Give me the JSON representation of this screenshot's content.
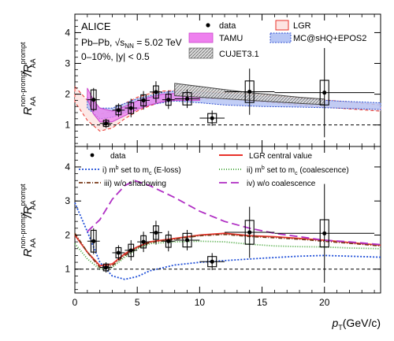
{
  "figure": {
    "experiment": "ALICE",
    "system": "Pb–Pb, √s",
    "system_sub": "NN",
    "energy": " = 5.02 TeV",
    "centrality": "0–10%, |y| < 0.5",
    "ylabel_main": "R",
    "ylabel_sub": "AA",
    "ylabel_sup_num": "non-prompt",
    "ylabel_sup_den": "prompt",
    "xlabel_main": "p",
    "xlabel_sub": "T",
    "xlabel_unit": "(GeV/c)"
  },
  "chart_data": [
    {
      "type": "line",
      "panel": "top",
      "xlim": [
        0,
        24.5
      ],
      "ylim": [
        0.3,
        4.6
      ],
      "yticks": [
        1,
        2,
        3,
        4
      ],
      "xticks": [],
      "reference_line": 1,
      "legend": {
        "data": "data",
        "lgr": "LGR",
        "tamu": "TAMU",
        "mc": "MC@sHQ+EPOS2",
        "cujet": "CUJET3.1"
      },
      "data_points": [
        {
          "x": 1.5,
          "y": 1.82,
          "xerr": 0.5,
          "stat": 0.38,
          "syst": 0.32
        },
        {
          "x": 2.5,
          "y": 1.05,
          "xerr": 0.5,
          "stat": 0.15,
          "syst": 0.1
        },
        {
          "x": 3.5,
          "y": 1.48,
          "xerr": 0.5,
          "stat": 0.22,
          "syst": 0.15
        },
        {
          "x": 4.5,
          "y": 1.55,
          "xerr": 0.5,
          "stat": 0.3,
          "syst": 0.18
        },
        {
          "x": 5.5,
          "y": 1.8,
          "xerr": 0.5,
          "stat": 0.3,
          "syst": 0.18
        },
        {
          "x": 6.5,
          "y": 2.07,
          "xerr": 0.5,
          "stat": 0.35,
          "syst": 0.2
        },
        {
          "x": 7.5,
          "y": 1.82,
          "xerr": 0.5,
          "stat": 0.3,
          "syst": 0.18
        },
        {
          "x": 9.0,
          "y": 1.85,
          "xerr": 1.0,
          "stat": 0.3,
          "syst": 0.2
        },
        {
          "x": 11.0,
          "y": 1.22,
          "xerr": 1.0,
          "stat": 0.25,
          "syst": 0.15
        },
        {
          "x": 14.0,
          "y": 2.08,
          "xerr": 2.0,
          "stat": 0.75,
          "syst": 0.35
        },
        {
          "x": 20.0,
          "y": 2.05,
          "xerr": 4.0,
          "stat": 1.45,
          "syst": 0.4
        }
      ],
      "models": {
        "lgr_band": {
          "x": [
            0.0,
            1.0,
            2.0,
            3.0,
            4.0,
            5.0,
            6.0,
            7.0,
            8.0,
            10.0,
            12.0,
            15.0,
            18.0,
            21.0,
            24.5
          ],
          "lo": [
            1.75,
            1.15,
            0.8,
            0.9,
            1.2,
            1.45,
            1.62,
            1.75,
            1.8,
            1.85,
            1.85,
            1.75,
            1.65,
            1.55,
            1.45
          ],
          "hi": [
            2.25,
            1.8,
            1.35,
            1.45,
            1.7,
            1.9,
            2.02,
            2.1,
            2.12,
            2.1,
            2.05,
            1.98,
            1.88,
            1.78,
            1.65
          ]
        },
        "tamu_band": {
          "x": [
            1.0,
            1.5,
            2.0,
            3.0,
            4.0,
            5.0,
            6.0,
            7.0,
            8.0,
            9.0,
            10.0
          ],
          "lo": [
            1.85,
            1.35,
            1.1,
            1.1,
            1.3,
            1.5,
            1.65,
            1.75,
            1.8,
            1.8,
            1.8
          ],
          "hi": [
            2.2,
            1.8,
            1.55,
            1.45,
            1.6,
            1.78,
            1.9,
            2.0,
            2.02,
            2.02,
            2.02
          ]
        },
        "mc_band": {
          "x": [
            1.0,
            2.0,
            3.0,
            4.0,
            5.0,
            6.0,
            7.0,
            8.0,
            10.0,
            12.0,
            15.0,
            18.0,
            21.0,
            24.5
          ],
          "lo": [
            1.55,
            1.2,
            1.25,
            1.4,
            1.55,
            1.65,
            1.72,
            1.78,
            1.72,
            1.65,
            1.6,
            1.58,
            1.55,
            1.5
          ],
          "hi": [
            1.9,
            1.55,
            1.55,
            1.7,
            1.85,
            1.95,
            2.05,
            2.1,
            2.08,
            2.0,
            1.92,
            1.85,
            1.78,
            1.72
          ]
        },
        "cujet_band": {
          "x": [
            8.0,
            10.0,
            12.0,
            14.0,
            16.0,
            18.0,
            20.0
          ],
          "lo": [
            1.95,
            1.9,
            1.85,
            1.8,
            1.75,
            1.7,
            1.66
          ],
          "hi": [
            2.35,
            2.25,
            2.15,
            2.05,
            1.98,
            1.9,
            1.84
          ]
        }
      }
    },
    {
      "type": "line",
      "panel": "bottom",
      "xlim": [
        0,
        24.5
      ],
      "ylim": [
        0.3,
        4.6
      ],
      "yticks": [
        1,
        2,
        3,
        4
      ],
      "xticks": [
        0,
        5,
        10,
        15,
        20
      ],
      "reference_line": 1,
      "legend": {
        "data": "data",
        "lgr_central": "LGR central value",
        "i_pre": "i) m",
        "i_mid": " set to m",
        "i_post": " (E-loss)",
        "ii_pre": "ii) m",
        "ii_mid": " set to m",
        "ii_post": " (coalescence)",
        "iii": "iii) w/o shadowing",
        "iv": "iv) w/o coalescence",
        "sub_b": "b",
        "sub_c": "c"
      },
      "series": [
        {
          "key": "lgr_central",
          "color": "#e8322a",
          "dash": "",
          "x": [
            0,
            1,
            2,
            3,
            4,
            5,
            6,
            8,
            10,
            12,
            14,
            16,
            18,
            20,
            22,
            24.5
          ],
          "y": [
            2.0,
            1.5,
            1.1,
            1.15,
            1.45,
            1.65,
            1.8,
            1.9,
            2.0,
            2.05,
            1.98,
            1.95,
            1.9,
            1.85,
            1.78,
            1.7
          ]
        },
        {
          "key": "i",
          "color": "#1f4fd8",
          "dash": "2,2",
          "x": [
            0,
            1,
            2,
            3,
            4,
            5,
            6,
            8,
            10,
            12,
            15,
            18,
            20,
            22,
            24.5
          ],
          "y": [
            2.95,
            2.1,
            1.2,
            0.8,
            0.7,
            0.78,
            0.95,
            1.12,
            1.2,
            1.25,
            1.32,
            1.38,
            1.4,
            1.38,
            1.35
          ]
        },
        {
          "key": "ii",
          "color": "#3aa02e",
          "dash": "1,2",
          "x": [
            0,
            1,
            2,
            3,
            4,
            5,
            6,
            8,
            10,
            12,
            14,
            16,
            18,
            20,
            22,
            24.5
          ],
          "y": [
            1.75,
            1.3,
            1.0,
            1.05,
            1.35,
            1.6,
            1.75,
            1.8,
            1.82,
            1.8,
            1.73,
            1.68,
            1.66,
            1.65,
            1.62,
            1.6
          ]
        },
        {
          "key": "iii",
          "color": "#7a3a1a",
          "dash": "5,2,1,2",
          "x": [
            0,
            1,
            2,
            3,
            4,
            5,
            6,
            8,
            10,
            12,
            14,
            16,
            18,
            20,
            22,
            24.5
          ],
          "y": [
            2.05,
            1.5,
            1.05,
            1.1,
            1.4,
            1.63,
            1.78,
            1.88,
            1.98,
            2.02,
            1.96,
            1.92,
            1.88,
            1.82,
            1.76,
            1.68
          ]
        },
        {
          "key": "iv",
          "color": "#b02fc4",
          "dash": "10,5",
          "x": [
            1,
            2,
            3,
            4,
            4.8,
            6,
            8,
            10,
            12,
            14,
            16,
            18,
            20,
            22,
            24.5
          ],
          "y": [
            2.1,
            2.45,
            3.05,
            3.45,
            3.6,
            3.45,
            3.1,
            2.7,
            2.4,
            2.2,
            2.05,
            1.95,
            1.85,
            1.8,
            1.72
          ]
        }
      ],
      "data_points": [
        {
          "x": 1.5,
          "y": 1.82,
          "xerr": 0.5,
          "stat": 0.38,
          "syst": 0.32
        },
        {
          "x": 2.5,
          "y": 1.05,
          "xerr": 0.5,
          "stat": 0.15,
          "syst": 0.1
        },
        {
          "x": 3.5,
          "y": 1.48,
          "xerr": 0.5,
          "stat": 0.22,
          "syst": 0.15
        },
        {
          "x": 4.5,
          "y": 1.55,
          "xerr": 0.5,
          "stat": 0.3,
          "syst": 0.18
        },
        {
          "x": 5.5,
          "y": 1.8,
          "xerr": 0.5,
          "stat": 0.3,
          "syst": 0.18
        },
        {
          "x": 6.5,
          "y": 2.07,
          "xerr": 0.5,
          "stat": 0.35,
          "syst": 0.2
        },
        {
          "x": 7.5,
          "y": 1.82,
          "xerr": 0.5,
          "stat": 0.3,
          "syst": 0.18
        },
        {
          "x": 9.0,
          "y": 1.85,
          "xerr": 1.0,
          "stat": 0.3,
          "syst": 0.2
        },
        {
          "x": 11.0,
          "y": 1.22,
          "xerr": 1.0,
          "stat": 0.25,
          "syst": 0.15
        },
        {
          "x": 14.0,
          "y": 2.08,
          "xerr": 2.0,
          "stat": 0.75,
          "syst": 0.35
        },
        {
          "x": 20.0,
          "y": 2.05,
          "xerr": 4.0,
          "stat": 1.45,
          "syst": 0.4
        }
      ]
    }
  ]
}
